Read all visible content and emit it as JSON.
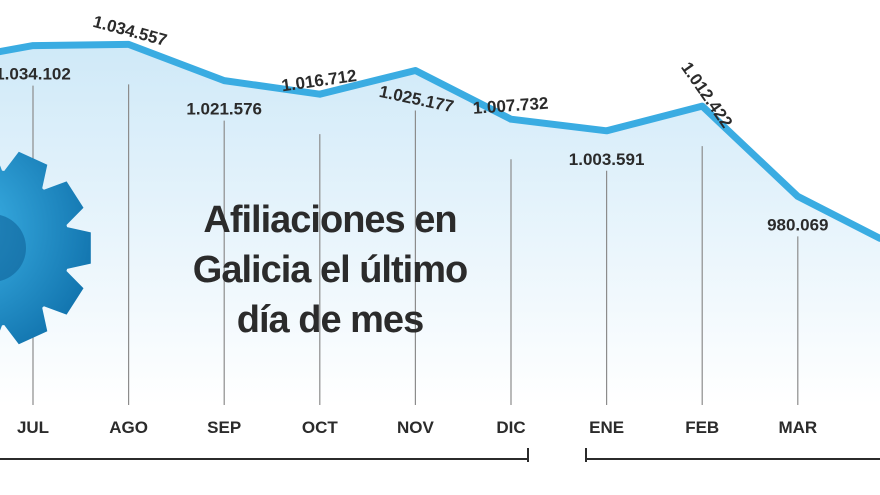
{
  "title_lines": [
    "Afiliaciones en",
    "Galicia el último",
    "día de mes"
  ],
  "colors": {
    "line": "#3aace2",
    "area": "#dff0fa",
    "text": "#2b2b2b",
    "gear": "#1a86c4"
  },
  "chart_data": {
    "type": "line",
    "title": "Afiliaciones en Galicia el último día de mes",
    "categories": [
      "JUL",
      "AGO",
      "SEP",
      "OCT",
      "NOV",
      "DIC",
      "ENE",
      "FEB",
      "MAR"
    ],
    "labels": [
      "1.034.102",
      "1.034.557",
      "1.021.576",
      "1.016.712",
      "1.025.177",
      "1.007.732",
      "1.003.591",
      "1.012.422",
      "980.069"
    ],
    "values": [
      1034102,
      1034557,
      1021576,
      1016712,
      1025177,
      1007732,
      1003591,
      1012422,
      980069
    ],
    "ylim": [
      958000,
      1044000
    ],
    "grid": false,
    "legend": "none"
  }
}
